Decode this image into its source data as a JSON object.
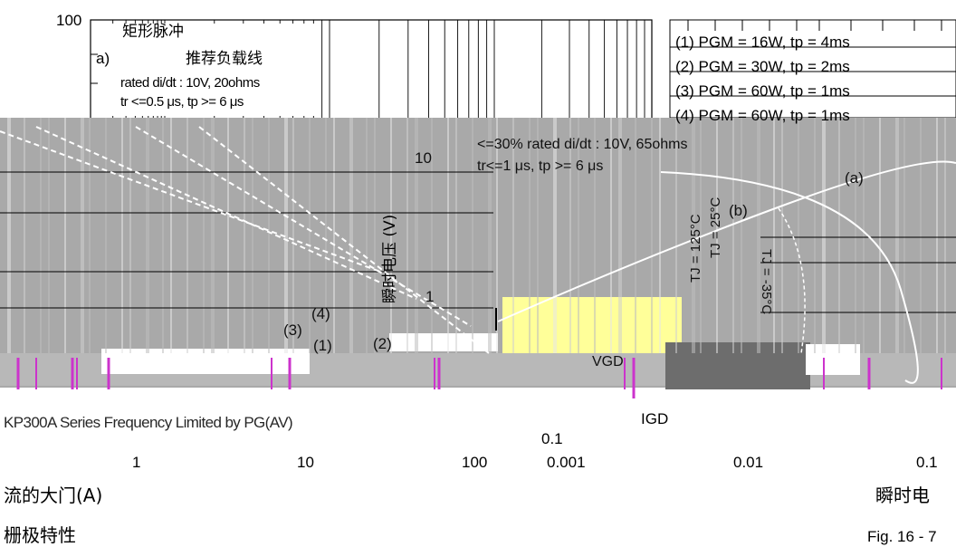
{
  "chart_data": [
    {
      "type": "line",
      "title": "矩形脉冲",
      "subtitle": "推荐负载线",
      "panel_label": "a)",
      "annotations": [
        "rated di/dt : 10V, 20ohms",
        "tr <=0.5 μs, tp >= 6 μs"
      ],
      "legend": [
        "(1) PGM = 16W,  tp = 4ms",
        "(2) PGM = 30W,  tp = 2ms",
        "(3) PGM = 60W,  tp = 1ms",
        "(4) PGM = 60W,  tp = 1ms"
      ],
      "curve_labels": [
        "(1)",
        "(2)",
        "(3)",
        "(4)"
      ],
      "footer": "KP300A Series Frequency Limited by PG(AV)",
      "y_ticks": [
        "100"
      ],
      "x_ticks": [
        "1",
        "10",
        "100"
      ],
      "xlabel": "流的大门(A)",
      "caption": "栅极特性",
      "scale": "log-log",
      "grid": true
    },
    {
      "type": "line",
      "annotations": [
        "<=30% rated di/dt : 10V, 65ohms",
        "tr<=1 μs, tp >= 6 μs"
      ],
      "curve_labels": [
        "(a)",
        "(b)"
      ],
      "temperature_labels": [
        "TJ = -35°C",
        "TJ = 25°C",
        "TJ = 125°C"
      ],
      "region_labels": [
        "VGD",
        "IGD"
      ],
      "ylabel": "瞬时电压 (V)",
      "y_ticks": [
        "10",
        "1",
        "0.1"
      ],
      "x_ticks": [
        "0.001",
        "0.01",
        "0.1"
      ],
      "xlabel": "瞬时电",
      "caption": "Fig. 16 - 7",
      "scale": "log-log",
      "grid": true
    }
  ],
  "colors": {
    "background": "#ffffff",
    "overlay_grey": "#a9a9a9",
    "highlight_yellow": "#ffff99",
    "accent_purple": "#cc33cc",
    "grid_black": "#000000"
  }
}
